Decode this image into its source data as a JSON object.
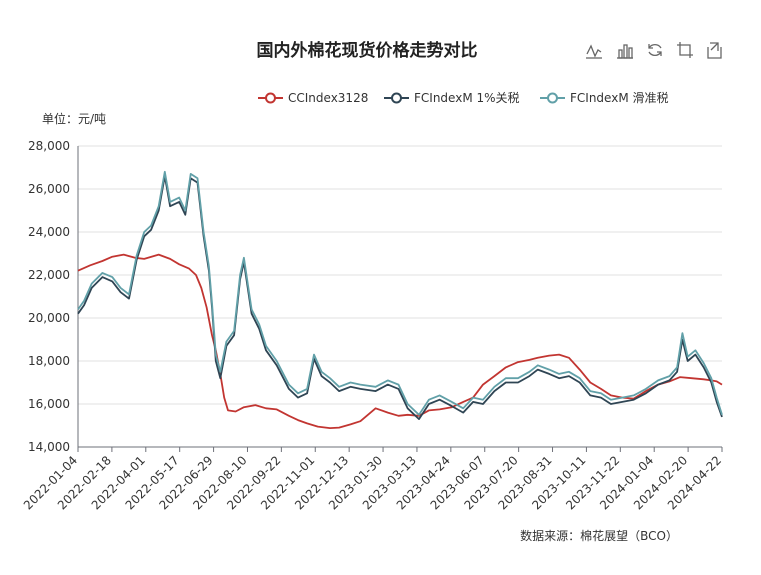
{
  "toolbar": {
    "icons": [
      "line-chart-icon",
      "bar-chart-icon",
      "refresh-icon",
      "crop-icon",
      "export-icon"
    ]
  },
  "chart_data": {
    "type": "line",
    "title": "国内外棉花现货价格走势对比",
    "unit_label": "单位：元/吨",
    "source": "数据来源：棉花展望（BCO）",
    "ylim": [
      14000,
      28000
    ],
    "yticks": [
      "14,000",
      "16,000",
      "18,000",
      "20,000",
      "22,000",
      "24,000",
      "26,000",
      "28,000"
    ],
    "ytick_values": [
      14000,
      16000,
      18000,
      20000,
      22000,
      24000,
      26000,
      28000
    ],
    "xticks": [
      "2022-01-04",
      "2022-02-18",
      "2022-04-01",
      "2022-05-17",
      "2022-06-29",
      "2022-08-10",
      "2022-09-22",
      "2022-11-01",
      "2022-12-13",
      "2023-01-30",
      "2023-03-13",
      "2023-04-24",
      "2023-06-07",
      "2023-07-20",
      "2023-08-31",
      "2023-10-11",
      "2023-11-22",
      "2024-01-04",
      "2024-02-20",
      "2024-04-22"
    ],
    "x_range": [
      "2022-01-04",
      "2024-04-29"
    ],
    "grid": true,
    "legend_position": "top-right",
    "series": [
      {
        "name": "CCIndex3128",
        "color": "#c23531",
        "points": [
          [
            "2022-01-04",
            22200
          ],
          [
            "2022-01-20",
            22450
          ],
          [
            "2022-02-05",
            22650
          ],
          [
            "2022-02-18",
            22850
          ],
          [
            "2022-03-05",
            22950
          ],
          [
            "2022-03-20",
            22800
          ],
          [
            "2022-04-01",
            22750
          ],
          [
            "2022-04-20",
            22950
          ],
          [
            "2022-05-05",
            22750
          ],
          [
            "2022-05-17",
            22500
          ],
          [
            "2022-05-30",
            22300
          ],
          [
            "2022-06-08",
            22000
          ],
          [
            "2022-06-15",
            21400
          ],
          [
            "2022-06-22",
            20500
          ],
          [
            "2022-06-29",
            19200
          ],
          [
            "2022-07-04",
            18500
          ],
          [
            "2022-07-10",
            17400
          ],
          [
            "2022-07-15",
            16300
          ],
          [
            "2022-07-20",
            15700
          ],
          [
            "2022-07-30",
            15650
          ],
          [
            "2022-08-10",
            15850
          ],
          [
            "2022-08-25",
            15950
          ],
          [
            "2022-09-08",
            15800
          ],
          [
            "2022-09-22",
            15750
          ],
          [
            "2022-10-08",
            15450
          ],
          [
            "2022-10-20",
            15250
          ],
          [
            "2022-11-01",
            15100
          ],
          [
            "2022-11-15",
            14950
          ],
          [
            "2022-12-01",
            14880
          ],
          [
            "2022-12-13",
            14900
          ],
          [
            "2022-12-28",
            15050
          ],
          [
            "2023-01-10",
            15200
          ],
          [
            "2023-01-30",
            15800
          ],
          [
            "2023-02-15",
            15600
          ],
          [
            "2023-03-01",
            15450
          ],
          [
            "2023-03-13",
            15500
          ],
          [
            "2023-03-28",
            15450
          ],
          [
            "2023-04-10",
            15700
          ],
          [
            "2023-04-24",
            15750
          ],
          [
            "2023-05-10",
            15850
          ],
          [
            "2023-05-25",
            16100
          ],
          [
            "2023-06-07",
            16300
          ],
          [
            "2023-06-20",
            16900
          ],
          [
            "2023-07-05",
            17300
          ],
          [
            "2023-07-20",
            17700
          ],
          [
            "2023-08-05",
            17950
          ],
          [
            "2023-08-20",
            18050
          ],
          [
            "2023-08-31",
            18150
          ],
          [
            "2023-09-15",
            18250
          ],
          [
            "2023-09-28",
            18300
          ],
          [
            "2023-10-11",
            18150
          ],
          [
            "2023-10-25",
            17600
          ],
          [
            "2023-11-08",
            17000
          ],
          [
            "2023-11-22",
            16700
          ],
          [
            "2023-12-05",
            16400
          ],
          [
            "2023-12-20",
            16300
          ],
          [
            "2024-01-04",
            16250
          ],
          [
            "2024-01-20",
            16600
          ],
          [
            "2024-02-05",
            16900
          ],
          [
            "2024-02-20",
            17050
          ],
          [
            "2024-03-05",
            17250
          ],
          [
            "2024-03-20",
            17200
          ],
          [
            "2024-04-05",
            17150
          ],
          [
            "2024-04-15",
            17100
          ],
          [
            "2024-04-22",
            17050
          ],
          [
            "2024-04-29",
            16900
          ]
        ]
      },
      {
        "name": "FCIndexM 1%关税",
        "color": "#2f4554",
        "points": [
          [
            "2022-01-04",
            20200
          ],
          [
            "2022-01-12",
            20600
          ],
          [
            "2022-01-22",
            21400
          ],
          [
            "2022-02-05",
            21900
          ],
          [
            "2022-02-18",
            21700
          ],
          [
            "2022-03-01",
            21200
          ],
          [
            "2022-03-12",
            20900
          ],
          [
            "2022-03-22",
            22700
          ],
          [
            "2022-04-01",
            23800
          ],
          [
            "2022-04-10",
            24100
          ],
          [
            "2022-04-20",
            25000
          ],
          [
            "2022-04-28",
            26600
          ],
          [
            "2022-05-05",
            25200
          ],
          [
            "2022-05-17",
            25400
          ],
          [
            "2022-05-25",
            24800
          ],
          [
            "2022-06-01",
            26500
          ],
          [
            "2022-06-10",
            26300
          ],
          [
            "2022-06-18",
            23800
          ],
          [
            "2022-06-25",
            22200
          ],
          [
            "2022-06-29",
            20500
          ],
          [
            "2022-07-04",
            18000
          ],
          [
            "2022-07-10",
            17200
          ],
          [
            "2022-07-18",
            18700
          ],
          [
            "2022-07-28",
            19200
          ],
          [
            "2022-08-05",
            21800
          ],
          [
            "2022-08-10",
            22600
          ],
          [
            "2022-08-20",
            20200
          ],
          [
            "2022-08-30",
            19500
          ],
          [
            "2022-09-08",
            18500
          ],
          [
            "2022-09-22",
            17800
          ],
          [
            "2022-10-08",
            16700
          ],
          [
            "2022-10-20",
            16300
          ],
          [
            "2022-11-01",
            16500
          ],
          [
            "2022-11-10",
            18100
          ],
          [
            "2022-11-20",
            17300
          ],
          [
            "2022-12-01",
            17000
          ],
          [
            "2022-12-13",
            16600
          ],
          [
            "2022-12-28",
            16800
          ],
          [
            "2023-01-10",
            16700
          ],
          [
            "2023-01-30",
            16600
          ],
          [
            "2023-02-15",
            16900
          ],
          [
            "2023-03-01",
            16700
          ],
          [
            "2023-03-13",
            15800
          ],
          [
            "2023-03-28",
            15300
          ],
          [
            "2023-04-10",
            16000
          ],
          [
            "2023-04-24",
            16200
          ],
          [
            "2023-05-10",
            15900
          ],
          [
            "2023-05-25",
            15600
          ],
          [
            "2023-06-07",
            16100
          ],
          [
            "2023-06-20",
            16000
          ],
          [
            "2023-07-05",
            16600
          ],
          [
            "2023-07-20",
            17000
          ],
          [
            "2023-08-05",
            17000
          ],
          [
            "2023-08-20",
            17300
          ],
          [
            "2023-08-31",
            17600
          ],
          [
            "2023-09-15",
            17400
          ],
          [
            "2023-09-28",
            17200
          ],
          [
            "2023-10-11",
            17300
          ],
          [
            "2023-10-25",
            17000
          ],
          [
            "2023-11-08",
            16400
          ],
          [
            "2023-11-22",
            16300
          ],
          [
            "2023-12-05",
            16000
          ],
          [
            "2023-12-20",
            16100
          ],
          [
            "2024-01-04",
            16200
          ],
          [
            "2024-01-20",
            16500
          ],
          [
            "2024-02-05",
            16900
          ],
          [
            "2024-02-20",
            17100
          ],
          [
            "2024-03-01",
            17500
          ],
          [
            "2024-03-08",
            19000
          ],
          [
            "2024-03-15",
            18000
          ],
          [
            "2024-03-25",
            18300
          ],
          [
            "2024-04-05",
            17700
          ],
          [
            "2024-04-15",
            17000
          ],
          [
            "2024-04-22",
            16100
          ],
          [
            "2024-04-29",
            15400
          ]
        ]
      },
      {
        "name": "FCIndexM 滑准税",
        "color": "#61a0a8",
        "points": [
          [
            "2022-01-04",
            20400
          ],
          [
            "2022-01-12",
            20800
          ],
          [
            "2022-01-22",
            21600
          ],
          [
            "2022-02-05",
            22100
          ],
          [
            "2022-02-18",
            21900
          ],
          [
            "2022-03-01",
            21400
          ],
          [
            "2022-03-12",
            21100
          ],
          [
            "2022-03-22",
            22900
          ],
          [
            "2022-04-01",
            24000
          ],
          [
            "2022-04-10",
            24300
          ],
          [
            "2022-04-20",
            25200
          ],
          [
            "2022-04-28",
            26800
          ],
          [
            "2022-05-05",
            25400
          ],
          [
            "2022-05-17",
            25600
          ],
          [
            "2022-05-25",
            25000
          ],
          [
            "2022-06-01",
            26700
          ],
          [
            "2022-06-10",
            26500
          ],
          [
            "2022-06-18",
            24000
          ],
          [
            "2022-06-25",
            22400
          ],
          [
            "2022-06-29",
            20700
          ],
          [
            "2022-07-04",
            18300
          ],
          [
            "2022-07-10",
            17500
          ],
          [
            "2022-07-18",
            18900
          ],
          [
            "2022-07-28",
            19400
          ],
          [
            "2022-08-05",
            22000
          ],
          [
            "2022-08-10",
            22800
          ],
          [
            "2022-08-20",
            20400
          ],
          [
            "2022-08-30",
            19700
          ],
          [
            "2022-09-08",
            18700
          ],
          [
            "2022-09-22",
            18000
          ],
          [
            "2022-10-08",
            16900
          ],
          [
            "2022-10-20",
            16500
          ],
          [
            "2022-11-01",
            16700
          ],
          [
            "2022-11-10",
            18300
          ],
          [
            "2022-11-20",
            17500
          ],
          [
            "2022-12-01",
            17200
          ],
          [
            "2022-12-13",
            16800
          ],
          [
            "2022-12-28",
            17000
          ],
          [
            "2023-01-10",
            16900
          ],
          [
            "2023-01-30",
            16800
          ],
          [
            "2023-02-15",
            17100
          ],
          [
            "2023-03-01",
            16900
          ],
          [
            "2023-03-13",
            16000
          ],
          [
            "2023-03-28",
            15500
          ],
          [
            "2023-04-10",
            16200
          ],
          [
            "2023-04-24",
            16400
          ],
          [
            "2023-05-10",
            16100
          ],
          [
            "2023-05-25",
            15800
          ],
          [
            "2023-06-07",
            16300
          ],
          [
            "2023-06-20",
            16200
          ],
          [
            "2023-07-05",
            16800
          ],
          [
            "2023-07-20",
            17200
          ],
          [
            "2023-08-05",
            17200
          ],
          [
            "2023-08-20",
            17500
          ],
          [
            "2023-08-31",
            17800
          ],
          [
            "2023-09-15",
            17600
          ],
          [
            "2023-09-28",
            17400
          ],
          [
            "2023-10-11",
            17500
          ],
          [
            "2023-10-25",
            17200
          ],
          [
            "2023-11-08",
            16600
          ],
          [
            "2023-11-22",
            16500
          ],
          [
            "2023-12-05",
            16200
          ],
          [
            "2023-12-20",
            16300
          ],
          [
            "2024-01-04",
            16400
          ],
          [
            "2024-01-20",
            16700
          ],
          [
            "2024-02-05",
            17100
          ],
          [
            "2024-02-20",
            17300
          ],
          [
            "2024-03-01",
            17700
          ],
          [
            "2024-03-08",
            19300
          ],
          [
            "2024-03-15",
            18200
          ],
          [
            "2024-03-25",
            18500
          ],
          [
            "2024-04-05",
            17900
          ],
          [
            "2024-04-15",
            17200
          ],
          [
            "2024-04-22",
            16300
          ],
          [
            "2024-04-29",
            15500
          ]
        ]
      }
    ]
  }
}
